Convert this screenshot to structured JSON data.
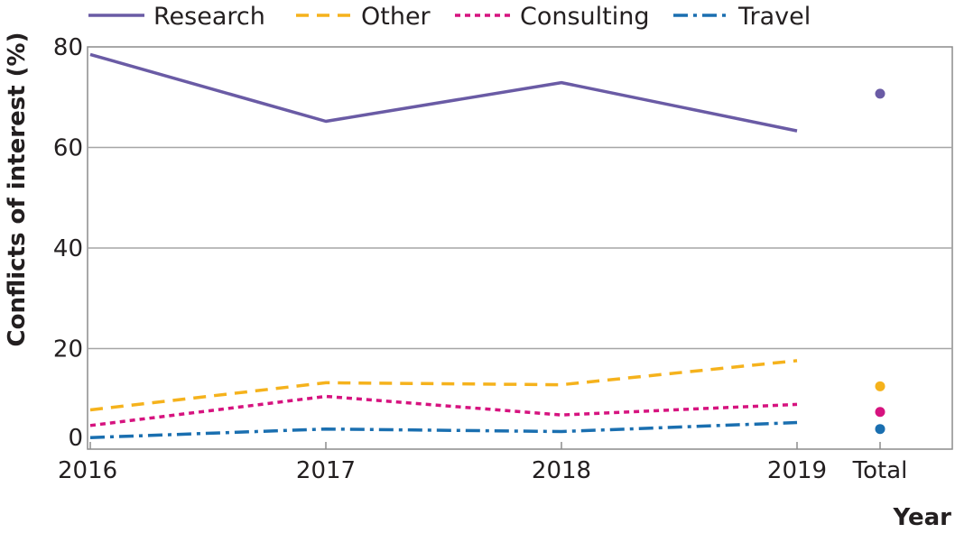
{
  "chart_data": {
    "type": "line",
    "title": "",
    "xlabel": "Year",
    "ylabel": "Conflicts of interest (%)",
    "x": [
      "2016",
      "2017",
      "2018",
      "2019"
    ],
    "total_label": "Total",
    "ylim": [
      0,
      80
    ],
    "yticks": [
      0,
      20,
      40,
      60,
      80
    ],
    "grid": true,
    "legend_position": "top",
    "series": [
      {
        "name": "Research",
        "values": [
          78.5,
          65.2,
          72.9,
          63.3
        ],
        "total": 70.7,
        "color": "#6a5ba5",
        "dash": "solid"
      },
      {
        "name": "Other",
        "values": [
          7.8,
          13.2,
          12.8,
          17.6
        ],
        "total": 12.5,
        "color": "#f5b21c",
        "dash": "dashed"
      },
      {
        "name": "Consulting",
        "values": [
          4.7,
          10.5,
          6.8,
          8.9
        ],
        "total": 7.4,
        "color": "#d6137f",
        "dash": "dotted"
      },
      {
        "name": "Travel",
        "values": [
          2.3,
          4.0,
          3.5,
          5.3
        ],
        "total": 4.0,
        "color": "#1a6fb0",
        "dash": "dashdot"
      }
    ]
  }
}
